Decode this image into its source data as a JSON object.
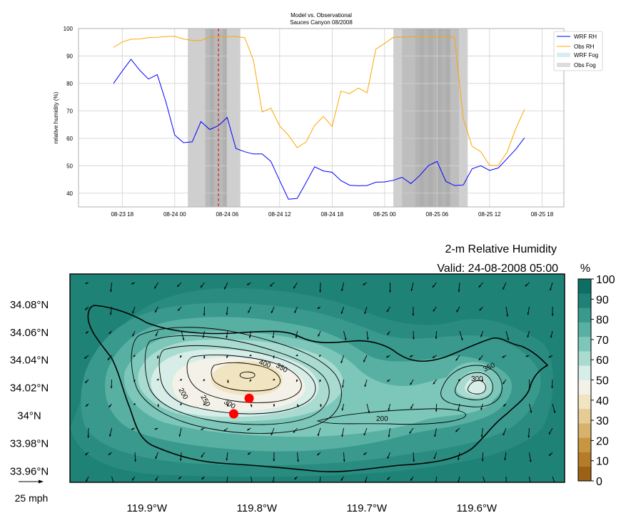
{
  "chart_data": [
    {
      "type": "line",
      "title": "Model vs. Observational",
      "subtitle": "Sauces Canyon 08/2008",
      "xlabel": "",
      "ylabel": "relative humidity (%)",
      "ylim": [
        35,
        100
      ],
      "yticks": [
        "40",
        "50",
        "60",
        "70",
        "80",
        "90",
        "100"
      ],
      "xlim": [
        "2008-08-23T13:00",
        "2008-08-25T20:30"
      ],
      "xticks": [
        {
          "t": "2008-08-23T18:00",
          "label": "08-23 18"
        },
        {
          "t": "2008-08-24T00:00",
          "label": "08-24 00"
        },
        {
          "t": "2008-08-24T06:00",
          "label": "08-24 06"
        },
        {
          "t": "2008-08-24T12:00",
          "label": "08-24 12"
        },
        {
          "t": "2008-08-24T18:00",
          "label": "08-24 18"
        },
        {
          "t": "2008-08-25T00:00",
          "label": "08-25 00"
        },
        {
          "t": "2008-08-25T06:00",
          "label": "08-25 06"
        },
        {
          "t": "2008-08-25T12:00",
          "label": "08-25 12"
        },
        {
          "t": "2008-08-25T18:00",
          "label": "08-25 18"
        }
      ],
      "grid": true,
      "legend_position": "top-right",
      "valid_time_marker": "2008-08-24T05:00",
      "series": [
        {
          "name": "WRF RH",
          "color": "#0000ff",
          "t0": "2008-08-23T17:00",
          "step_hours": 1,
          "values": [
            80,
            84.5,
            88.8,
            84.8,
            81.6,
            83.2,
            73.2,
            61.2,
            58.4,
            58.7,
            66.1,
            63.2,
            64.6,
            67.6,
            56.3,
            55.1,
            54.3,
            54.3,
            51.6,
            44.6,
            37.8,
            38.1,
            43.8,
            49.6,
            48.1,
            47.6,
            44.6,
            42.9,
            42.7,
            42.8,
            44,
            44.1,
            44.7,
            45.8,
            43.5,
            46.4,
            50,
            51.6,
            44.3,
            42.8,
            43,
            48.9,
            50,
            48.3,
            49.2,
            52.6,
            56,
            60.2
          ]
        },
        {
          "name": "Obs RH",
          "color": "#ffa500",
          "t0": "2008-08-23T17:00",
          "step_hours": 1,
          "values": [
            93.1,
            95.1,
            96.1,
            96.2,
            96.7,
            96.8,
            97.1,
            97.2,
            96.2,
            95.7,
            95.6,
            96.8,
            97.1,
            97.1,
            97.1,
            96.7,
            88.5,
            69.6,
            71,
            64.5,
            61.1,
            56.6,
            58.6,
            64.7,
            68,
            64.3,
            77.2,
            76.3,
            78.3,
            76.6,
            92.5,
            94.6,
            96.8,
            96.9,
            97,
            97,
            97,
            97,
            97,
            96.8,
            67.1,
            57.1,
            55.1,
            50.1,
            50.1,
            55,
            63.5,
            70.6
          ]
        }
      ],
      "fog_legend": [
        {
          "name": "WRF Fog",
          "color": "#d6eef2"
        },
        {
          "name": "Obs Fog",
          "color": "#dddddd"
        }
      ],
      "obs_fog_periods": [
        {
          "start": "2008-08-24T01:30",
          "end": "2008-08-24T07:30",
          "opacity": 0.55
        },
        {
          "start": "2008-08-24T03:30",
          "end": "2008-08-24T06:00",
          "opacity": 0.55
        },
        {
          "start": "2008-08-24T04:00",
          "end": "2008-08-24T04:30",
          "opacity": 0.6
        },
        {
          "start": "2008-08-24T05:30",
          "end": "2008-08-24T06:00",
          "opacity": 0.5
        },
        {
          "start": "2008-08-25T01:00",
          "end": "2008-08-25T09:30",
          "opacity": 0.55
        },
        {
          "start": "2008-08-25T02:00",
          "end": "2008-08-25T08:30",
          "opacity": 0.45
        },
        {
          "start": "2008-08-25T03:30",
          "end": "2008-08-25T07:30",
          "opacity": 0.45
        },
        {
          "start": "2008-08-25T04:00",
          "end": "2008-08-25T04:30",
          "opacity": 0.5
        },
        {
          "start": "2008-08-25T05:00",
          "end": "2008-08-25T05:30",
          "opacity": 0.5
        },
        {
          "start": "2008-08-25T06:00",
          "end": "2008-08-25T06:30",
          "opacity": 0.5
        },
        {
          "start": "2008-08-25T07:00",
          "end": "2008-08-25T07:30",
          "opacity": 0.5
        }
      ]
    },
    {
      "type": "heatmap",
      "title": "2-m Relative Humidity",
      "subtitle": "Valid: 24-08-2008 05:00",
      "colorbar_label": "%",
      "colorbar_ticks": [
        "0",
        "10",
        "20",
        "30",
        "40",
        "50",
        "60",
        "70",
        "80",
        "90",
        "100"
      ],
      "colorbar_colors": [
        "#9c6115",
        "#b47b28",
        "#c69642",
        "#d6b26c",
        "#e5cc95",
        "#f1e4c0",
        "#f4f1e8",
        "#d6ede8",
        "#a9dbd0",
        "#7cc7ba",
        "#58b0a3",
        "#38998c",
        "#1f8276",
        "#0d6f64"
      ],
      "lon_range": [
        -119.97,
        -119.52
      ],
      "lat_range": [
        33.952,
        34.102
      ],
      "xticks": [
        {
          "value": -119.9,
          "label": "119.9°W"
        },
        {
          "value": -119.8,
          "label": "119.8°W"
        },
        {
          "value": -119.7,
          "label": "119.7°W"
        },
        {
          "value": -119.6,
          "label": "119.6°W"
        }
      ],
      "yticks": [
        {
          "value": 34.08,
          "label": "34.08°N"
        },
        {
          "value": 34.06,
          "label": "34.06°N"
        },
        {
          "value": 34.04,
          "label": "34.04°N"
        },
        {
          "value": 34.02,
          "label": "34.02°N"
        },
        {
          "value": 34.0,
          "label": "34°N"
        },
        {
          "value": 33.98,
          "label": "33.98°N"
        },
        {
          "value": 33.96,
          "label": "33.96°N"
        }
      ],
      "contour_labels": [
        "200",
        "250",
        "300",
        "350",
        "400",
        "200",
        "300",
        "350"
      ],
      "stations": [
        {
          "lon": -119.807,
          "lat": 34.0125
        },
        {
          "lon": -119.821,
          "lat": 34.0013
        }
      ],
      "wind_key_label": "25 mph"
    }
  ]
}
